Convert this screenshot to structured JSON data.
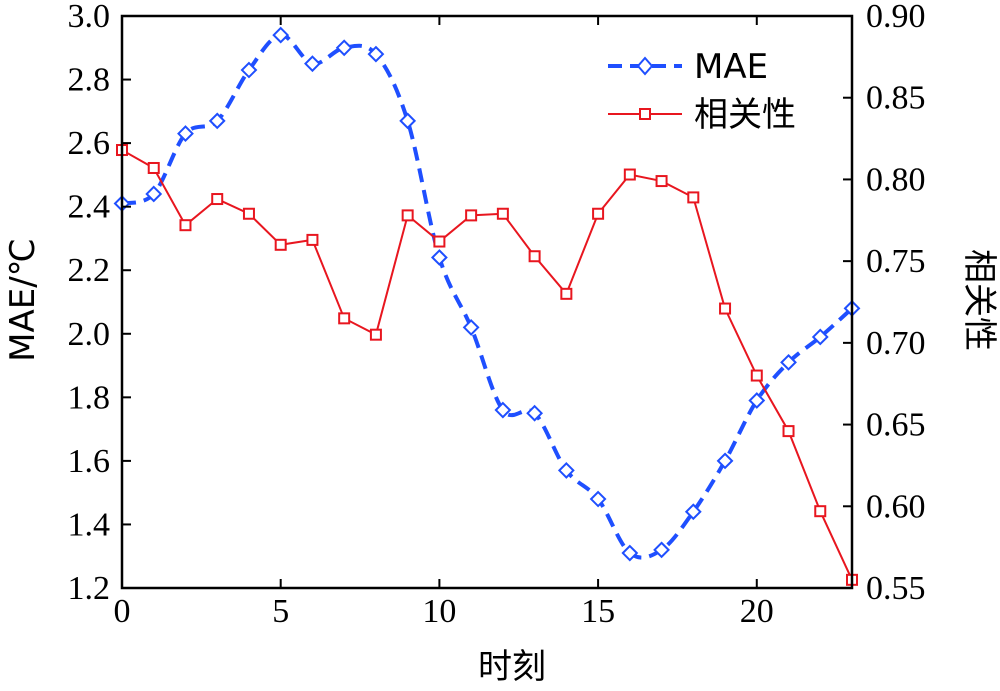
{
  "chart_data": {
    "type": "line",
    "xlabel": "时刻",
    "ylabel_left": "MAE/℃",
    "ylabel_right": "相关性",
    "xlim": [
      0,
      23
    ],
    "ylim_left": [
      1.2,
      3.0
    ],
    "ylim_right": [
      0.55,
      0.9
    ],
    "x_ticks": [
      0,
      5,
      10,
      15,
      20
    ],
    "y_ticks_left": [
      "1.2",
      "1.4",
      "1.6",
      "1.8",
      "2.0",
      "2.2",
      "2.4",
      "2.6",
      "2.8",
      "3.0"
    ],
    "y_ticks_right": [
      "0.55",
      "0.60",
      "0.65",
      "0.70",
      "0.75",
      "0.80",
      "0.85",
      "0.90"
    ],
    "grid": false,
    "legend_position": "top-right",
    "x": [
      0,
      1,
      2,
      3,
      4,
      5,
      6,
      7,
      8,
      9,
      10,
      11,
      12,
      13,
      14,
      15,
      16,
      17,
      18,
      19,
      20,
      21,
      22,
      23
    ],
    "series": [
      {
        "name": "MAE",
        "axis": "left",
        "color": "#1f4fff",
        "line_style": "dashed",
        "marker": "diamond",
        "values": [
          2.41,
          2.44,
          2.63,
          2.67,
          2.83,
          2.94,
          2.85,
          2.9,
          2.88,
          2.67,
          2.24,
          2.02,
          1.76,
          1.75,
          1.57,
          1.48,
          1.31,
          1.32,
          1.44,
          1.6,
          1.79,
          1.91,
          1.99,
          2.08
        ]
      },
      {
        "name": "相关性",
        "axis": "right",
        "color": "#e8161f",
        "line_style": "solid",
        "marker": "square",
        "values": [
          0.818,
          0.807,
          0.772,
          0.788,
          0.779,
          0.76,
          0.763,
          0.715,
          0.705,
          0.778,
          0.762,
          0.778,
          0.779,
          0.753,
          0.73,
          0.779,
          0.803,
          0.799,
          0.789,
          0.721,
          0.68,
          0.646,
          0.597,
          0.555
        ]
      }
    ]
  }
}
